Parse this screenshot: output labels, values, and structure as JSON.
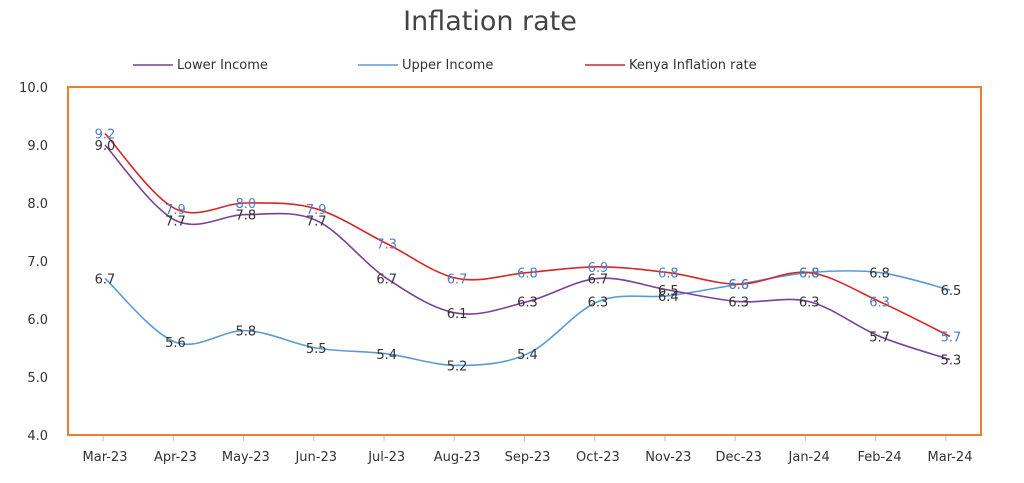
{
  "chart_data": {
    "type": "line",
    "title": "Inflation rate",
    "xlabel": "",
    "ylabel": "",
    "categories": [
      "Mar-23",
      "Apr-23",
      "May-23",
      "Jun-23",
      "Jul-23",
      "Aug-23",
      "Sep-23",
      "Oct-23",
      "Nov-23",
      "Dec-23",
      "Jan-24",
      "Feb-24",
      "Mar-24"
    ],
    "ylim": [
      4.0,
      10.0
    ],
    "yticks": [
      "4.0",
      "5.0",
      "6.0",
      "7.0",
      "8.0",
      "9.0",
      "10.0"
    ],
    "legend_position": "top",
    "grid": false,
    "series": [
      {
        "name": "Lower Income",
        "color": "#7b3f98",
        "values": [
          9.0,
          7.7,
          7.8,
          7.7,
          6.7,
          6.1,
          6.3,
          6.7,
          6.5,
          6.3,
          6.3,
          5.7,
          5.3
        ]
      },
      {
        "name": "Upper Income",
        "color": "#5b9bd5",
        "values": [
          6.7,
          5.6,
          5.8,
          5.5,
          5.4,
          5.2,
          5.4,
          6.3,
          6.4,
          6.6,
          6.8,
          6.8,
          6.5
        ]
      },
      {
        "name": "Kenya Inflation rate",
        "color": "#d62728",
        "label_color": "#4f7fc4",
        "values": [
          9.2,
          7.9,
          8.0,
          7.9,
          7.3,
          6.7,
          6.8,
          6.9,
          6.8,
          6.6,
          6.8,
          6.3,
          5.7
        ]
      }
    ]
  }
}
